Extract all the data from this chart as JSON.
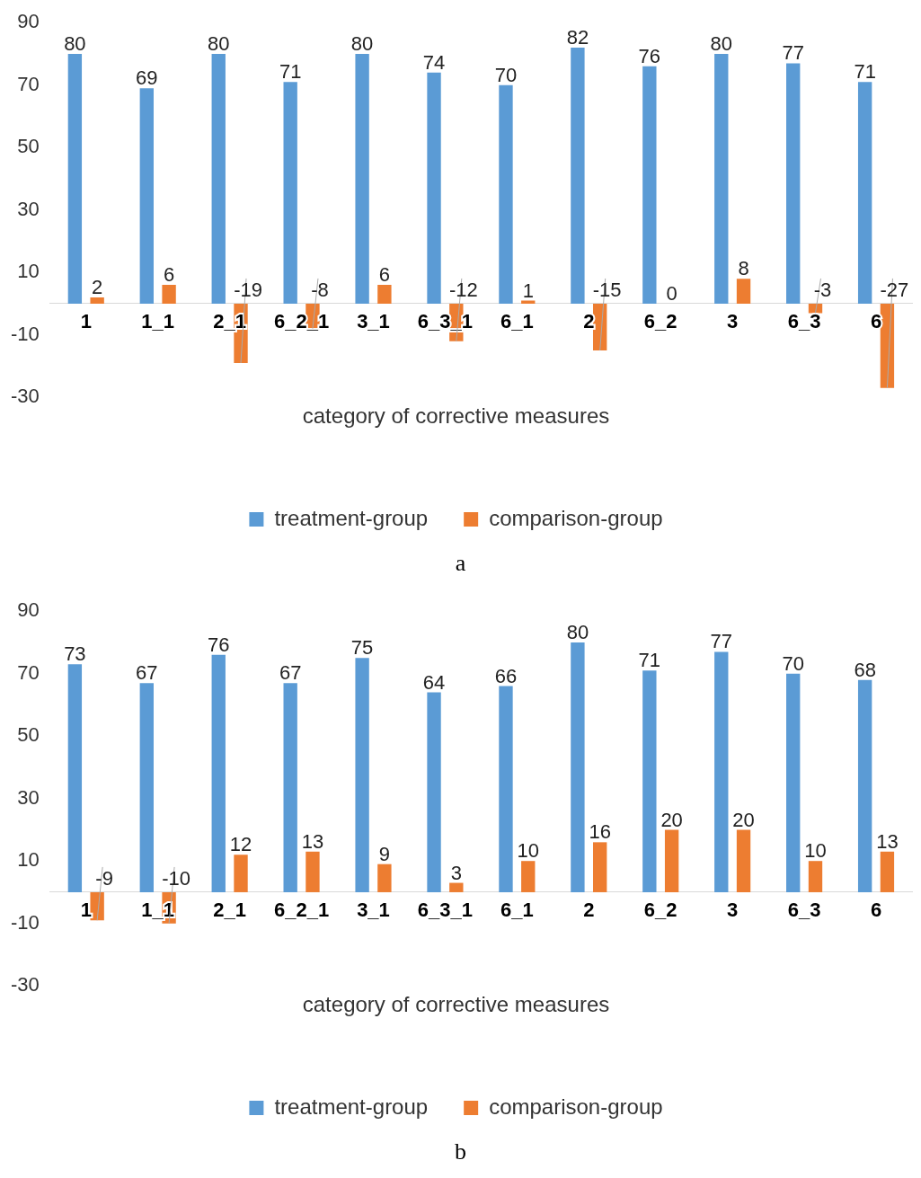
{
  "chart_data": [
    {
      "type": "bar",
      "xlabel": "category of corrective measures",
      "categories": [
        "1",
        "1_1",
        "2_1",
        "6_2_1",
        "3_1",
        "6_3_1",
        "6_1",
        "2",
        "6_2",
        "3",
        "6_3",
        "6"
      ],
      "series": [
        {
          "name": "treatment-group",
          "color": "#5b9bd5",
          "values": [
            80,
            69,
            80,
            71,
            80,
            74,
            70,
            82,
            76,
            80,
            77,
            71
          ]
        },
        {
          "name": "comparison-group",
          "color": "#ed7d31",
          "values": [
            2,
            6,
            -19,
            -8,
            6,
            -12,
            1,
            -15,
            0,
            8,
            -3,
            -27
          ]
        }
      ],
      "ylim": [
        -30,
        90
      ],
      "yticks": [
        -30,
        -10,
        10,
        30,
        50,
        70,
        90
      ],
      "grid": false,
      "legend": "bottom",
      "data_labels": true,
      "annotations": [
        "a"
      ]
    },
    {
      "type": "bar",
      "xlabel": "category of corrective measures",
      "categories": [
        "1",
        "1_1",
        "2_1",
        "6_2_1",
        "3_1",
        "6_3_1",
        "6_1",
        "2",
        "6_2",
        "3",
        "6_3",
        "6"
      ],
      "series": [
        {
          "name": "treatment-group",
          "color": "#5b9bd5",
          "values": [
            73,
            67,
            76,
            67,
            75,
            64,
            66,
            80,
            71,
            77,
            70,
            68
          ]
        },
        {
          "name": "comparison-group",
          "color": "#ed7d31",
          "values": [
            -9,
            -10,
            12,
            13,
            9,
            3,
            10,
            16,
            20,
            20,
            10,
            13
          ]
        }
      ],
      "ylim": [
        -30,
        90
      ],
      "yticks": [
        -30,
        -10,
        10,
        30,
        50,
        70,
        90
      ],
      "grid": false,
      "legend": "bottom",
      "data_labels": true,
      "annotations": [
        "b"
      ]
    }
  ]
}
